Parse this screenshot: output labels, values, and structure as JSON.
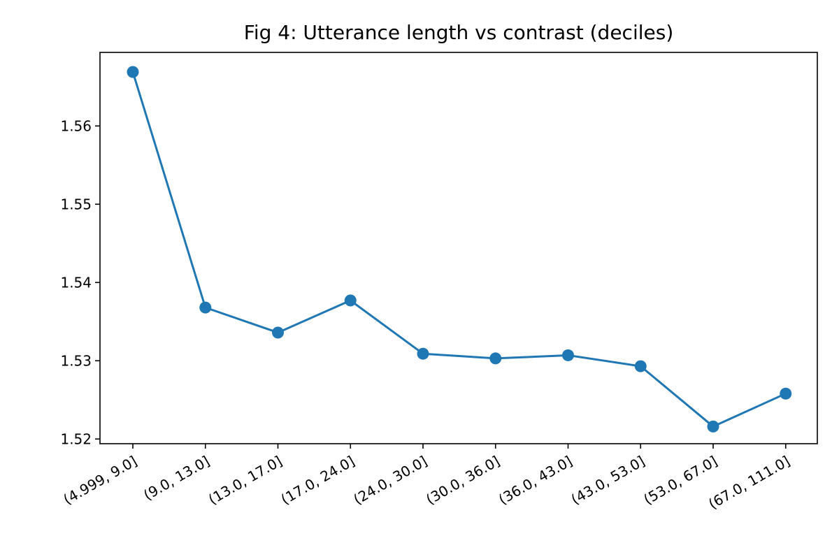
{
  "chart_data": {
    "type": "line",
    "title": "Fig 4: Utterance length vs contrast (deciles)",
    "xlabel": "",
    "ylabel": "",
    "categories": [
      "(4.999, 9.0]",
      "(9.0, 13.0]",
      "(13.0, 17.0]",
      "(17.0, 24.0]",
      "(24.0, 30.0]",
      "(30.0, 36.0]",
      "(36.0, 43.0]",
      "(43.0, 53.0]",
      "(53.0, 67.0]",
      "(67.0, 111.0]"
    ],
    "series": [
      {
        "values": [
          1.5669,
          1.5368,
          1.5336,
          1.5377,
          1.5309,
          1.5303,
          1.5307,
          1.5293,
          1.5216,
          1.5258
        ]
      }
    ],
    "ylim": [
      1.5194,
      1.5694
    ],
    "yticks": [
      1.52,
      1.53,
      1.54,
      1.55,
      1.56
    ],
    "ytick_labels": [
      "1.52",
      "1.53",
      "1.54",
      "1.55",
      "1.56"
    ],
    "grid": false,
    "colors": {
      "line": "#1f77b4",
      "marker": "#1f77b4",
      "axes": "#000000"
    }
  }
}
